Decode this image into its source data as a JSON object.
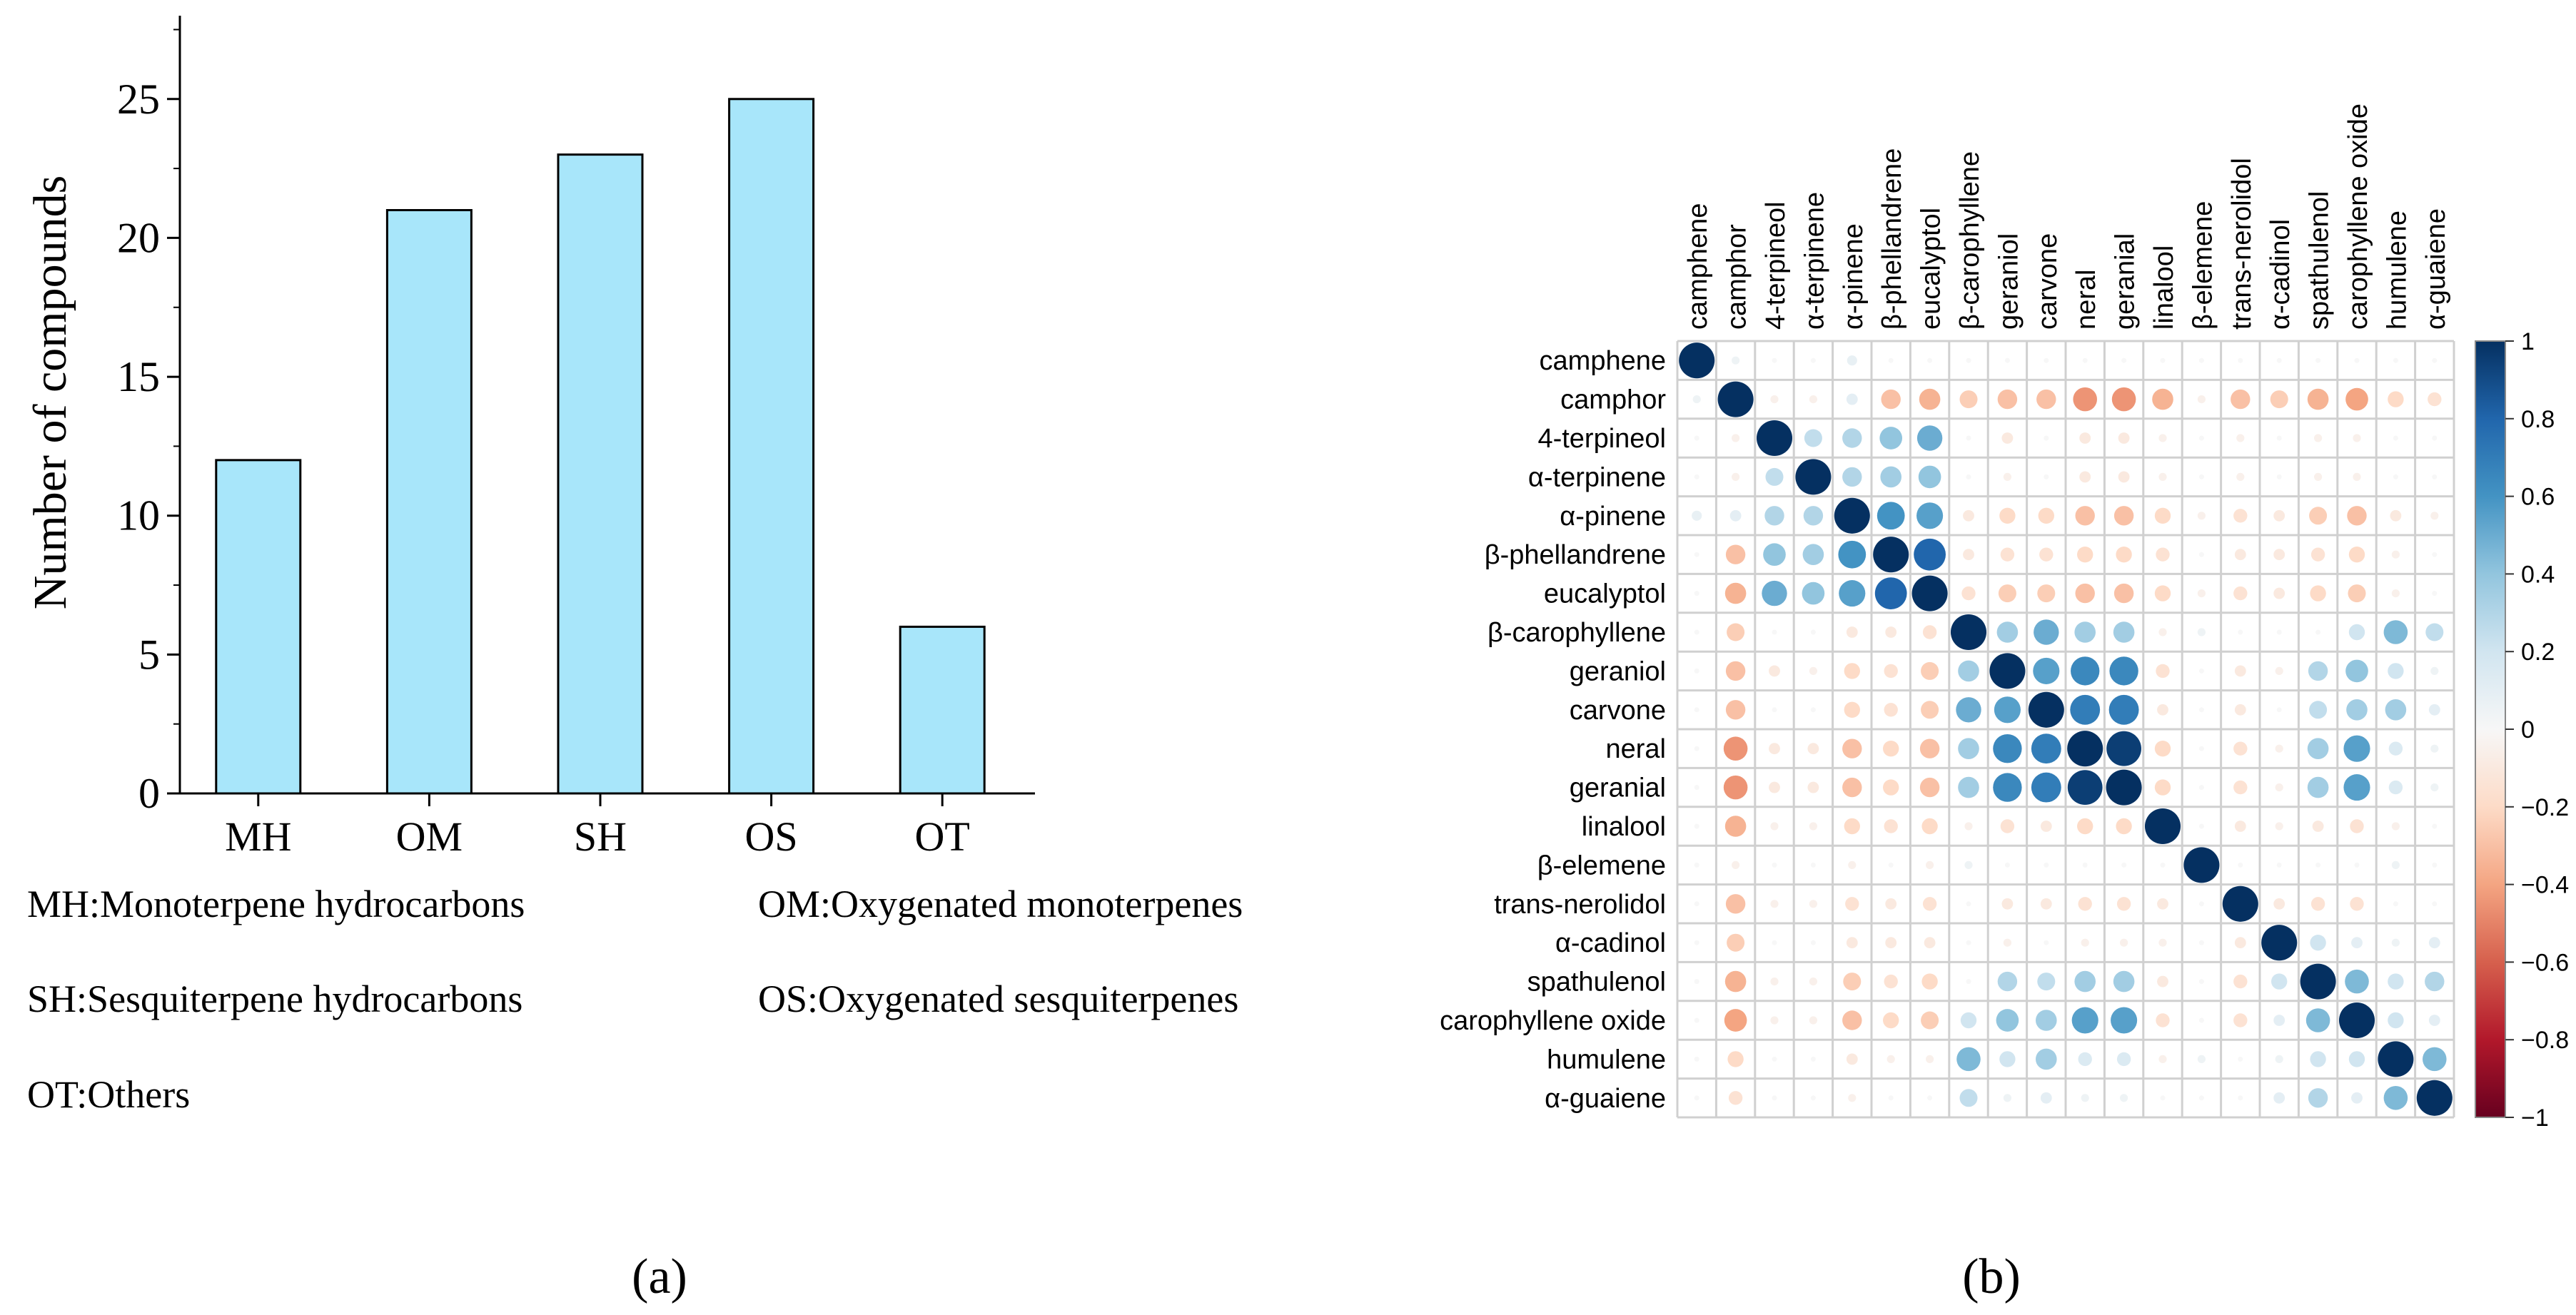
{
  "chart_data": [
    {
      "panel_label": "(a)",
      "type": "bar",
      "ylabel": "Number of compounds",
      "xlabel": "",
      "ylim": [
        0,
        28
      ],
      "yticks": [
        0,
        5,
        10,
        15,
        20,
        25
      ],
      "categories": [
        "MH",
        "OM",
        "SH",
        "OS",
        "OT"
      ],
      "values": [
        12,
        21,
        23,
        25,
        6
      ],
      "bar_color": "#a8e6fa",
      "legend_lines": [
        [
          "MH:Monoterpene hydrocarbons",
          "OM:Oxygenated  monoterpenes"
        ],
        [
          "SH:Sesquiterpene hydrocarbons",
          "OS:Oxygenated sesquiterpenes"
        ],
        [
          "OT:Others"
        ]
      ]
    },
    {
      "panel_label": "(b)",
      "type": "heatmap",
      "labels": [
        "camphene",
        "camphor",
        "4-terpineol",
        "α-terpinene",
        "α-pinene",
        "β-phellandrene",
        "eucalyptol",
        "β-carophyllene",
        "geraniol",
        "carvone",
        "neral",
        "geranial",
        "linalool",
        "β-elemene",
        "trans-nerolidol",
        "α-cadinol",
        "spathulenol",
        "carophyllene oxide",
        "humulene",
        "α-guaiene"
      ],
      "colorbar_ticks": [
        "1",
        "0.8",
        "0.6",
        "0.4",
        "0.2",
        "0",
        "−0.2",
        "−0.4",
        "−0.6",
        "−0.8",
        "−1"
      ],
      "colorbar_range": [
        -1,
        1
      ],
      "colors": {
        "positive": "#053061",
        "neutral": "#f7f7f7",
        "negative": "#67001f"
      },
      "matrix": [
        [
          1,
          0.05,
          0,
          0,
          0.08,
          0,
          0,
          0,
          0,
          0,
          0,
          0,
          0,
          0,
          0,
          0,
          0,
          0,
          0,
          0
        ],
        [
          0.05,
          1,
          -0.05,
          -0.05,
          0.1,
          -0.3,
          -0.35,
          -0.25,
          -0.3,
          -0.3,
          -0.45,
          -0.45,
          -0.35,
          -0.05,
          -0.3,
          -0.25,
          -0.35,
          -0.4,
          -0.2,
          -0.15
        ],
        [
          0,
          -0.05,
          1,
          0.25,
          0.3,
          0.4,
          0.5,
          0,
          -0.1,
          0,
          -0.1,
          -0.1,
          -0.05,
          0,
          -0.05,
          0,
          -0.05,
          -0.05,
          0,
          0
        ],
        [
          0,
          -0.05,
          0.25,
          1,
          0.3,
          0.35,
          0.4,
          0,
          -0.05,
          0,
          -0.1,
          -0.1,
          -0.05,
          0,
          -0.05,
          0,
          -0.05,
          -0.05,
          0,
          0
        ],
        [
          0.08,
          0.1,
          0.3,
          0.3,
          1,
          0.6,
          0.55,
          -0.1,
          -0.2,
          -0.2,
          -0.3,
          -0.3,
          -0.2,
          -0.05,
          -0.15,
          -0.1,
          -0.25,
          -0.3,
          -0.1,
          -0.05
        ],
        [
          0,
          -0.3,
          0.4,
          0.35,
          0.6,
          1,
          0.8,
          -0.1,
          -0.15,
          -0.15,
          -0.2,
          -0.2,
          -0.15,
          0,
          -0.1,
          -0.1,
          -0.15,
          -0.2,
          -0.05,
          0
        ],
        [
          0,
          -0.35,
          0.5,
          0.4,
          0.55,
          0.8,
          1,
          -0.15,
          -0.25,
          -0.25,
          -0.3,
          -0.3,
          -0.2,
          -0.05,
          -0.15,
          -0.1,
          -0.2,
          -0.25,
          -0.05,
          0
        ],
        [
          0,
          -0.25,
          0,
          0,
          -0.1,
          -0.1,
          -0.15,
          1,
          0.35,
          0.5,
          0.35,
          0.35,
          -0.05,
          0.05,
          0,
          0,
          0,
          0.2,
          0.45,
          0.25
        ],
        [
          0,
          -0.3,
          -0.1,
          -0.05,
          -0.2,
          -0.15,
          -0.25,
          0.35,
          1,
          0.55,
          0.65,
          0.65,
          -0.15,
          0,
          -0.1,
          -0.05,
          0.3,
          0.4,
          0.2,
          0.05
        ],
        [
          0,
          -0.3,
          0,
          0,
          -0.2,
          -0.15,
          -0.25,
          0.5,
          0.55,
          1,
          0.7,
          0.7,
          -0.1,
          0,
          -0.1,
          0,
          0.25,
          0.35,
          0.35,
          0.1
        ],
        [
          0,
          -0.45,
          -0.1,
          -0.1,
          -0.3,
          -0.2,
          -0.3,
          0.35,
          0.65,
          0.7,
          1,
          0.95,
          -0.2,
          0,
          -0.15,
          -0.05,
          0.35,
          0.55,
          0.15,
          0.05
        ],
        [
          0,
          -0.45,
          -0.1,
          -0.1,
          -0.3,
          -0.2,
          -0.3,
          0.35,
          0.65,
          0.7,
          0.95,
          1,
          -0.2,
          0,
          -0.15,
          -0.05,
          0.35,
          0.55,
          0.15,
          0.05
        ],
        [
          0,
          -0.35,
          -0.05,
          -0.05,
          -0.2,
          -0.15,
          -0.2,
          -0.05,
          -0.15,
          -0.1,
          -0.2,
          -0.2,
          1,
          0,
          -0.1,
          -0.05,
          -0.1,
          -0.15,
          -0.05,
          0
        ],
        [
          0,
          -0.05,
          0,
          0,
          -0.05,
          0,
          -0.05,
          0.05,
          0,
          0,
          0,
          0,
          0,
          1,
          0,
          0,
          0,
          0,
          0.05,
          0
        ],
        [
          0,
          -0.3,
          -0.05,
          -0.05,
          -0.15,
          -0.1,
          -0.15,
          0,
          -0.1,
          -0.1,
          -0.15,
          -0.15,
          -0.1,
          0,
          1,
          -0.1,
          -0.15,
          -0.15,
          0,
          0
        ],
        [
          0,
          -0.25,
          0,
          0,
          -0.1,
          -0.1,
          -0.1,
          0,
          -0.05,
          0,
          -0.05,
          -0.05,
          -0.05,
          0,
          -0.1,
          1,
          0.2,
          0.1,
          0.05,
          0.1
        ],
        [
          0,
          -0.35,
          -0.05,
          -0.05,
          -0.25,
          -0.15,
          -0.2,
          0,
          0.3,
          0.25,
          0.35,
          0.35,
          -0.1,
          0,
          -0.15,
          0.2,
          1,
          0.45,
          0.2,
          0.3
        ],
        [
          0,
          -0.4,
          -0.05,
          -0.05,
          -0.3,
          -0.2,
          -0.25,
          0.2,
          0.4,
          0.35,
          0.55,
          0.55,
          -0.15,
          0,
          -0.15,
          0.1,
          0.45,
          1,
          0.2,
          0.1
        ],
        [
          0,
          -0.2,
          0,
          0,
          -0.1,
          -0.05,
          -0.05,
          0.45,
          0.2,
          0.35,
          0.15,
          0.15,
          -0.05,
          0.05,
          0,
          0.05,
          0.2,
          0.2,
          1,
          0.45
        ],
        [
          0,
          -0.15,
          0,
          0,
          -0.05,
          0,
          0,
          0.25,
          0.05,
          0.1,
          0.05,
          0.05,
          0,
          0,
          0,
          0.1,
          0.3,
          0.1,
          0.45,
          1
        ]
      ]
    }
  ]
}
